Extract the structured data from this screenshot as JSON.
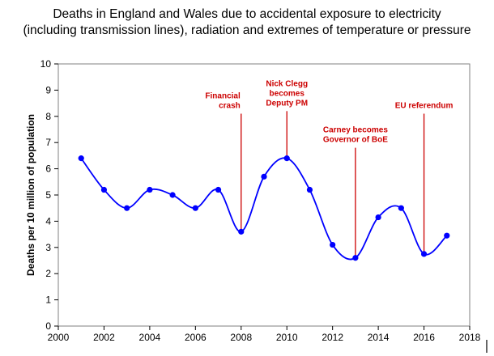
{
  "chart_data": {
    "type": "line",
    "title_line1": "Deaths in England and Wales due to accidental exposure to electricity",
    "title_line2": "(including transmission lines), radiation and extremes of temperature or pressure",
    "xlabel": "",
    "ylabel": "Deaths per 10 million of population",
    "xlim": [
      2000,
      2018
    ],
    "ylim": [
      0,
      10
    ],
    "xticks": [
      2000,
      2002,
      2004,
      2006,
      2008,
      2010,
      2012,
      2014,
      2016,
      2018
    ],
    "yticks": [
      0,
      1,
      2,
      3,
      4,
      5,
      6,
      7,
      8,
      9,
      10
    ],
    "series": [
      {
        "name": "Deaths",
        "x": [
          2001,
          2002,
          2003,
          2004,
          2005,
          2006,
          2007,
          2008,
          2009,
          2010,
          2011,
          2012,
          2013,
          2014,
          2015,
          2016,
          2017
        ],
        "y": [
          6.4,
          5.2,
          4.5,
          5.2,
          5.0,
          4.5,
          5.2,
          3.6,
          5.7,
          6.4,
          5.2,
          3.1,
          2.6,
          4.15,
          4.5,
          2.75,
          3.45
        ],
        "color": "#0000ff",
        "smoothed": true
      }
    ],
    "annotations": [
      {
        "x": 2008,
        "y_bottom": 3.6,
        "y_top": 8.1,
        "lines": [
          "Financial",
          "crash"
        ],
        "align": "right",
        "color": "#cc0000"
      },
      {
        "x": 2010,
        "y_bottom": 6.4,
        "y_top": 8.2,
        "lines": [
          "Nick Clegg",
          "becomes",
          "Deputy PM"
        ],
        "align": "center",
        "color": "#cc0000"
      },
      {
        "x": 2013,
        "y_bottom": 2.6,
        "y_top": 6.8,
        "lines": [
          "Carney becomes",
          "Governor of BoE"
        ],
        "align": "center",
        "color": "#cc0000"
      },
      {
        "x": 2016,
        "y_bottom": 2.75,
        "y_top": 8.1,
        "lines": [
          "EU referendum"
        ],
        "align": "center",
        "color": "#cc0000"
      }
    ]
  }
}
